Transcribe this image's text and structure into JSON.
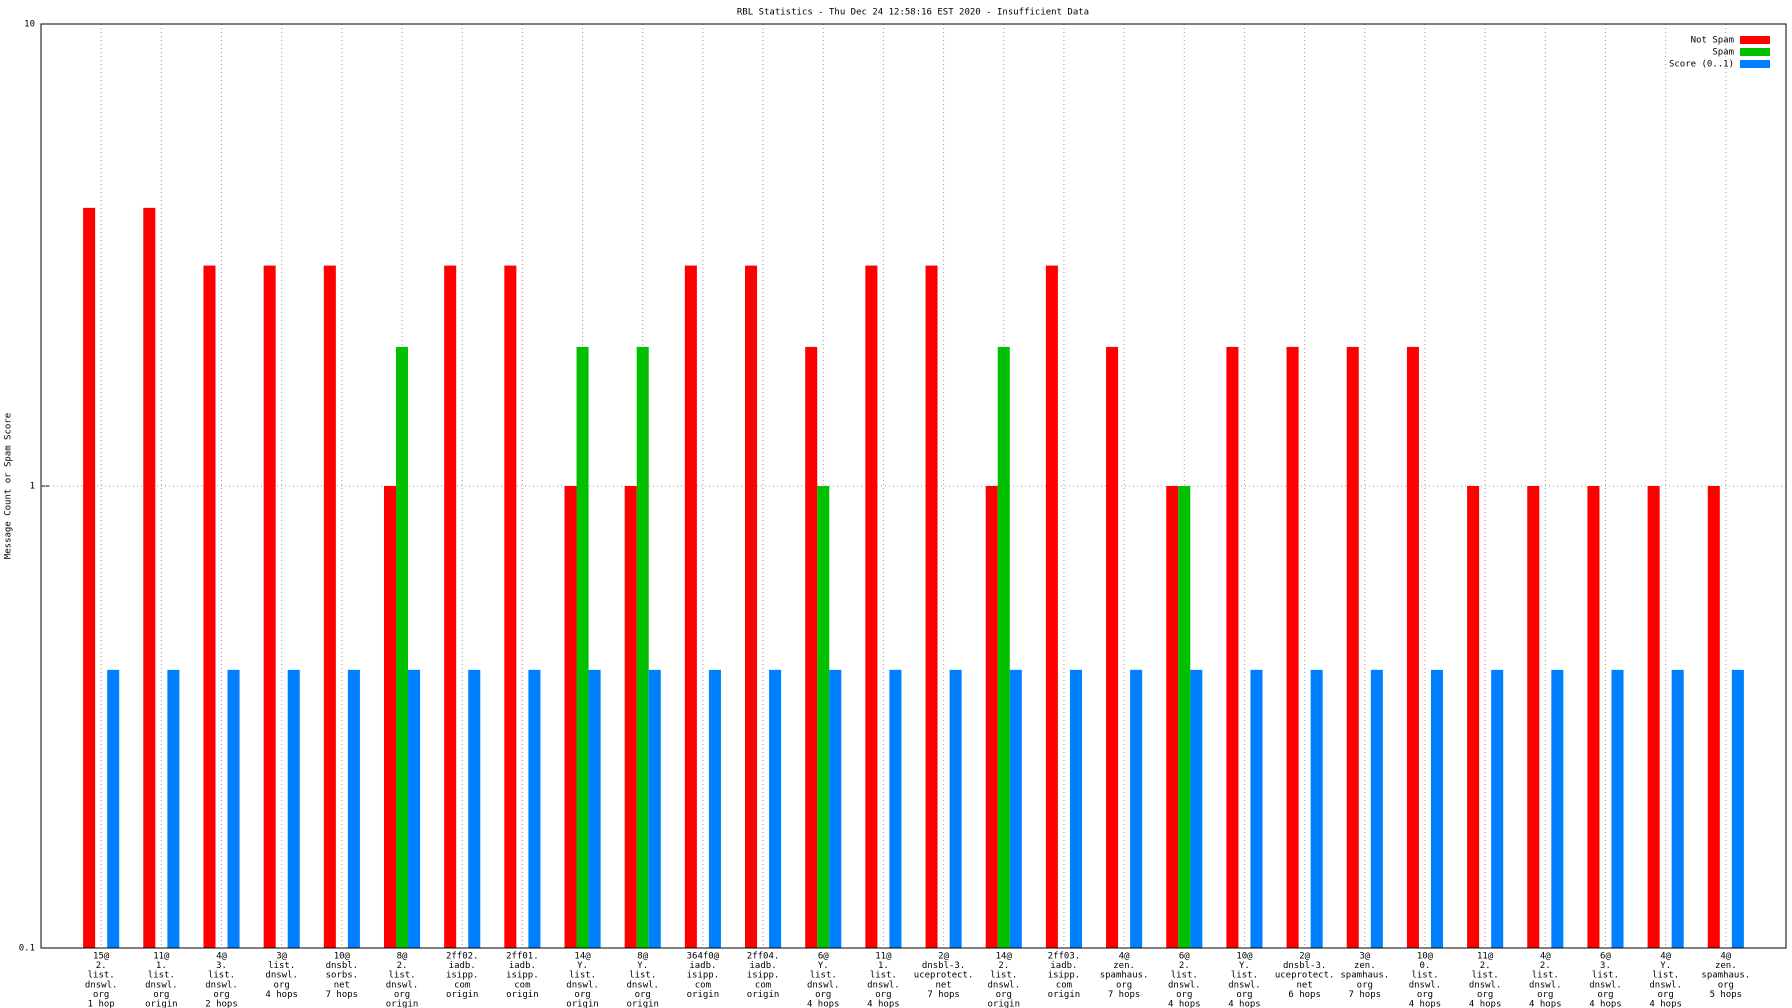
{
  "chart_data": {
    "type": "bar",
    "title": "RBL Statistics - Thu Dec 24 12:58:16 EST 2020 - Insufficient Data",
    "y_label": "Message Count or Spam Score",
    "log_scale": true,
    "grid": true,
    "legend": "top-right",
    "ylim": [
      0.1,
      10
    ],
    "yticks": [
      0.1,
      1,
      10
    ],
    "categories": [
      [
        "15@",
        "2.",
        "list.",
        "dnswl.",
        "org",
        "1 hop"
      ],
      [
        "11@",
        "1.",
        "list.",
        "dnswl.",
        "org",
        "origin"
      ],
      [
        "4@",
        "3.",
        "list.",
        "dnswl.",
        "org",
        "2 hops"
      ],
      [
        "3@",
        "list.",
        "dnswl.",
        "org",
        "4 hops"
      ],
      [
        "10@",
        "dnsbl.",
        "sorbs.",
        "net",
        "7 hops"
      ],
      [
        "8@",
        "2.",
        "list.",
        "dnswl.",
        "org",
        "origin"
      ],
      [
        "2ff02.",
        "iadb.",
        "isipp.",
        "com",
        "origin"
      ],
      [
        "2ff01.",
        "iadb.",
        "isipp.",
        "com",
        "origin"
      ],
      [
        "14@",
        "Y.",
        "list.",
        "dnswl.",
        "org",
        "origin"
      ],
      [
        "8@",
        "Y.",
        "list.",
        "dnswl.",
        "org",
        "origin"
      ],
      [
        "364f0@",
        "iadb.",
        "isipp.",
        "com",
        "origin"
      ],
      [
        "2ff04.",
        "iadb.",
        "isipp.",
        "com",
        "origin"
      ],
      [
        "6@",
        "Y.",
        "list.",
        "dnswl.",
        "org",
        "4 hops"
      ],
      [
        "11@",
        "1.",
        "list.",
        "dnswl.",
        "org",
        "4 hops"
      ],
      [
        "2@",
        "dnsbl-3.",
        "uceprotect.",
        "net",
        "7 hops"
      ],
      [
        "14@",
        "2.",
        "list.",
        "dnswl.",
        "org",
        "origin"
      ],
      [
        "2ff03.",
        "iadb.",
        "isipp.",
        "com",
        "origin"
      ],
      [
        "4@",
        "zen.",
        "spamhaus.",
        "org",
        "7 hops"
      ],
      [
        "6@",
        "2.",
        "list.",
        "dnswl.",
        "org",
        "4 hops"
      ],
      [
        "10@",
        "Y.",
        "list.",
        "dnswl.",
        "org",
        "4 hops"
      ],
      [
        "2@",
        "dnsbl-3.",
        "uceprotect.",
        "net",
        "6 hops"
      ],
      [
        "3@",
        "zen.",
        "spamhaus.",
        "org",
        "7 hops"
      ],
      [
        "10@",
        "0.",
        "list.",
        "dnswl.",
        "org",
        "4 hops"
      ],
      [
        "11@",
        "2.",
        "list.",
        "dnswl.",
        "org",
        "4 hops"
      ],
      [
        "4@",
        "2.",
        "list.",
        "dnswl.",
        "org",
        "4 hops"
      ],
      [
        "6@",
        "3.",
        "list.",
        "dnswl.",
        "org",
        "4 hops"
      ],
      [
        "4@",
        "Y.",
        "list.",
        "dnswl.",
        "org",
        "4 hops"
      ],
      [
        "4@",
        "zen.",
        "spamhaus.",
        "org",
        "5 hops"
      ]
    ],
    "series": [
      {
        "name": "Not Spam",
        "color": "#ff0000",
        "values": [
          4,
          4,
          3,
          3,
          3,
          1,
          3,
          3,
          1,
          1,
          3,
          3,
          2,
          3,
          3,
          1,
          3,
          2,
          1,
          2,
          2,
          2,
          2,
          1,
          1,
          1,
          1,
          1
        ]
      },
      {
        "name": "Spam",
        "color": "#00c000",
        "values": [
          null,
          null,
          null,
          null,
          null,
          2,
          null,
          null,
          2,
          2,
          null,
          null,
          1,
          null,
          null,
          2,
          null,
          null,
          1,
          null,
          null,
          null,
          null,
          null,
          null,
          null,
          null,
          null
        ]
      },
      {
        "name": "Score (0..1)",
        "color": "#0080ff",
        "values": [
          0.4,
          0.4,
          0.4,
          0.4,
          0.4,
          0.4,
          0.4,
          0.4,
          0.4,
          0.4,
          0.4,
          0.4,
          0.4,
          0.4,
          0.4,
          0.4,
          0.4,
          0.4,
          0.4,
          0.4,
          0.4,
          0.4,
          0.4,
          0.4,
          0.4,
          0.4,
          0.4,
          0.4
        ]
      }
    ]
  }
}
